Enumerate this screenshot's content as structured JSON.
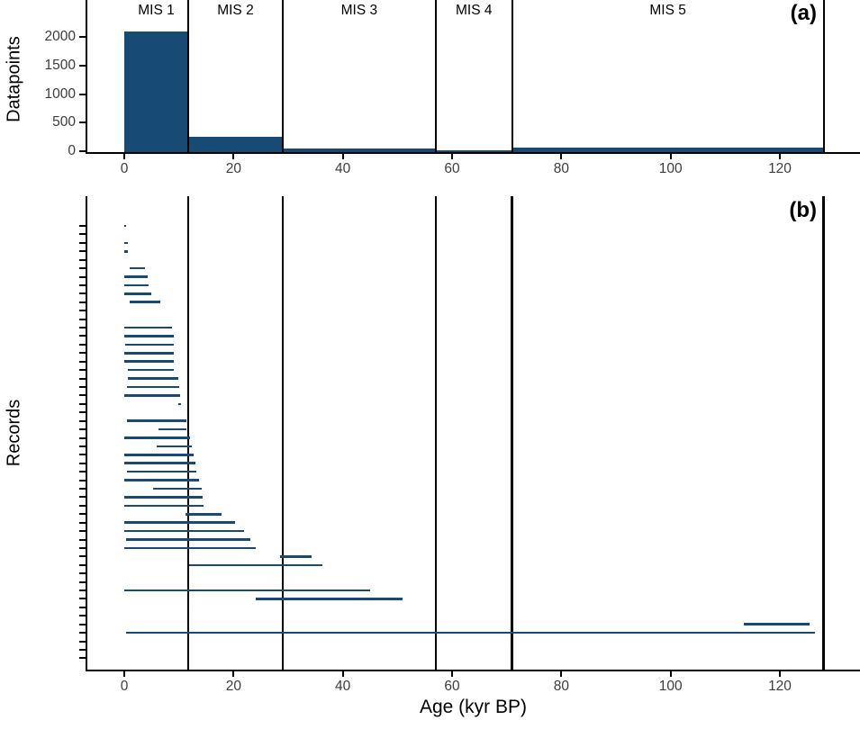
{
  "xlabel": "Age (kyr BP)",
  "colors": {
    "navy": "#174b76",
    "axis": "#000000",
    "tick_text": "#3d3d3d"
  },
  "chart_data": [
    {
      "type": "bar",
      "panel_label": "(a)",
      "ylabel": "Datapoints",
      "yticks": [
        0,
        500,
        1000,
        1500,
        2000
      ],
      "xticks": [
        0,
        20,
        40,
        60,
        80,
        100,
        120
      ],
      "ylim": [
        0,
        2300
      ],
      "xlim": [
        -7,
        135
      ],
      "grid": false,
      "zones": [
        {
          "label": "MIS 1",
          "start": 0,
          "end": 11.7,
          "datapoints": 2100
        },
        {
          "label": "MIS 2",
          "start": 11.7,
          "end": 29,
          "datapoints": 260
        },
        {
          "label": "MIS 3",
          "start": 29,
          "end": 57,
          "datapoints": 55
        },
        {
          "label": "MIS 4",
          "start": 57,
          "end": 71,
          "datapoints": 10
        },
        {
          "label": "MIS 5",
          "start": 71,
          "end": 128,
          "datapoints": 60
        }
      ],
      "boundaries": [
        11.7,
        29,
        57,
        71,
        128
      ]
    },
    {
      "type": "segments",
      "panel_label": "(b)",
      "ylabel": "Records",
      "xticks": [
        0,
        20,
        40,
        60,
        80,
        100,
        120
      ],
      "xlim": [
        -7,
        135
      ],
      "boundaries": [
        11.7,
        29,
        57,
        71,
        128
      ],
      "n_rows": 52,
      "records": [
        {
          "row": 0,
          "start": 0.1,
          "end": 0.4
        },
        {
          "row": 2,
          "start": 0,
          "end": 0.7
        },
        {
          "row": 3,
          "start": 0,
          "end": 0.7
        },
        {
          "row": 5,
          "start": 1,
          "end": 3.8
        },
        {
          "row": 6,
          "start": 0,
          "end": 4.4
        },
        {
          "row": 7,
          "start": 0,
          "end": 4.6
        },
        {
          "row": 8,
          "start": 0,
          "end": 5
        },
        {
          "row": 9,
          "start": 1,
          "end": 6.6
        },
        {
          "row": 12,
          "start": 0,
          "end": 8.8
        },
        {
          "row": 13,
          "start": 0,
          "end": 9.1
        },
        {
          "row": 14,
          "start": 0.2,
          "end": 9.2
        },
        {
          "row": 15,
          "start": 0,
          "end": 9.2
        },
        {
          "row": 16,
          "start": 0,
          "end": 9.1
        },
        {
          "row": 17,
          "start": 0.7,
          "end": 9.1
        },
        {
          "row": 18,
          "start": 0.7,
          "end": 9.9
        },
        {
          "row": 19,
          "start": 0.5,
          "end": 10.1
        },
        {
          "row": 20,
          "start": 0,
          "end": 10.3
        },
        {
          "row": 21,
          "start": 9.9,
          "end": 10.5
        },
        {
          "row": 23,
          "start": 0.6,
          "end": 11.5
        },
        {
          "row": 24,
          "start": 6.4,
          "end": 11.4
        },
        {
          "row": 25,
          "start": 0,
          "end": 12.1
        },
        {
          "row": 26,
          "start": 6,
          "end": 12.4
        },
        {
          "row": 27,
          "start": 0,
          "end": 12.7
        },
        {
          "row": 28,
          "start": 0,
          "end": 13.1
        },
        {
          "row": 29,
          "start": 0.6,
          "end": 13.3
        },
        {
          "row": 30,
          "start": 0,
          "end": 13.7
        },
        {
          "row": 31,
          "start": 5.4,
          "end": 14.3
        },
        {
          "row": 32,
          "start": 0,
          "end": 14.5
        },
        {
          "row": 33,
          "start": 0,
          "end": 14.6
        },
        {
          "row": 34,
          "start": 11.3,
          "end": 17.9
        },
        {
          "row": 35,
          "start": 0,
          "end": 20.4
        },
        {
          "row": 36,
          "start": 0,
          "end": 22
        },
        {
          "row": 37,
          "start": 0.4,
          "end": 23.1
        },
        {
          "row": 38,
          "start": 0,
          "end": 24.1
        },
        {
          "row": 39,
          "start": 28.6,
          "end": 34.4
        },
        {
          "row": 40,
          "start": 12,
          "end": 36.3
        },
        {
          "row": 43,
          "start": 0,
          "end": 45.1
        },
        {
          "row": 44,
          "start": 24.1,
          "end": 51
        },
        {
          "row": 47,
          "start": 113.5,
          "end": 125.5
        },
        {
          "row": 48,
          "start": 0.4,
          "end": 126.5
        }
      ]
    }
  ]
}
